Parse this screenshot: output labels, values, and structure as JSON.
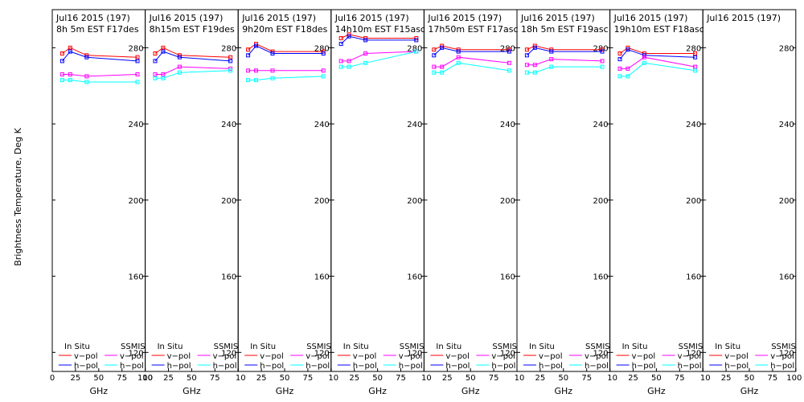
{
  "chart_data": {
    "type": "line",
    "ylabel": "Brightness Temperature, Deg K",
    "xlabel": "GHz",
    "ylim": [
      110,
      300
    ],
    "xlim": [
      0,
      100
    ],
    "yticks": [
      120,
      160,
      200,
      240,
      280
    ],
    "xticks": [
      0,
      25,
      50,
      75,
      100
    ],
    "xtick_labels": [
      "0",
      "25",
      "50",
      "75",
      "100"
    ],
    "panel_x_labels": [
      "10",
      "25",
      "50",
      "75",
      "100"
    ],
    "legend": {
      "in_situ": "In Situ",
      "ssmis": "SSMIS",
      "v_pol": "v−pol",
      "h_pol": "h−pol"
    },
    "colors": {
      "insitu_v": "#ff0000",
      "insitu_h": "#0000ff",
      "ssmis_v": "#ff00ff",
      "ssmis_h": "#00ffff",
      "axis": "#000000"
    },
    "freqs": [
      10.7,
      19.3,
      37,
      91.7
    ],
    "panels": [
      {
        "title1": "Jul16 2015 (197)",
        "title2": "8h 5m  EST F17des",
        "series": {
          "insitu_v": [
            277,
            280,
            276,
            275
          ],
          "insitu_h": [
            273,
            278,
            275,
            273
          ],
          "ssmis_v": [
            266,
            266,
            265,
            266
          ],
          "ssmis_h": [
            263,
            263,
            262,
            262
          ]
        }
      },
      {
        "title1": "Jul16 2015 (197)",
        "title2": "8h15m  EST F19des",
        "series": {
          "insitu_v": [
            277,
            280,
            276,
            275
          ],
          "insitu_h": [
            273,
            278,
            275,
            273
          ],
          "ssmis_v": [
            266,
            266,
            270,
            269
          ],
          "ssmis_h": [
            264,
            264,
            267,
            268
          ]
        }
      },
      {
        "title1": "Jul16 2015 (197)",
        "title2": "9h20m  EST F18des",
        "series": {
          "insitu_v": [
            279,
            282,
            278,
            278
          ],
          "insitu_h": [
            276,
            281,
            277,
            277
          ],
          "ssmis_v": [
            268,
            268,
            268,
            268
          ],
          "ssmis_h": [
            263,
            263,
            264,
            265
          ]
        }
      },
      {
        "title1": "Jul16 2015 (197)",
        "title2": "14h10m  EST F15asc",
        "series": {
          "insitu_v": [
            285,
            287,
            285,
            285
          ],
          "insitu_h": [
            282,
            286,
            284,
            284
          ],
          "ssmis_v": [
            273,
            273,
            277,
            278
          ],
          "ssmis_h": [
            270,
            270,
            272,
            278
          ]
        }
      },
      {
        "title1": "Jul16 2015 (197)",
        "title2": "17h50m  EST F17asc",
        "series": {
          "insitu_v": [
            279,
            281,
            279,
            279
          ],
          "insitu_h": [
            276,
            280,
            278,
            278
          ],
          "ssmis_v": [
            270,
            270,
            275,
            272
          ],
          "ssmis_h": [
            267,
            267,
            272,
            268
          ]
        }
      },
      {
        "title1": "Jul16 2015 (197)",
        "title2": "18h 5m  EST F19asc",
        "series": {
          "insitu_v": [
            279,
            281,
            279,
            279
          ],
          "insitu_h": [
            276,
            280,
            278,
            278
          ],
          "ssmis_v": [
            271,
            271,
            274,
            273
          ],
          "ssmis_h": [
            267,
            267,
            270,
            270
          ]
        }
      },
      {
        "title1": "Jul16 2015 (197)",
        "title2": "19h10m  EST F18asc",
        "series": {
          "insitu_v": [
            277,
            280,
            277,
            277
          ],
          "insitu_h": [
            274,
            279,
            276,
            275
          ],
          "ssmis_v": [
            269,
            269,
            275,
            270
          ],
          "ssmis_h": [
            265,
            265,
            272,
            268
          ]
        }
      },
      {
        "title1": "Jul16 2015 (197)",
        "title2": "",
        "series": null
      }
    ]
  }
}
